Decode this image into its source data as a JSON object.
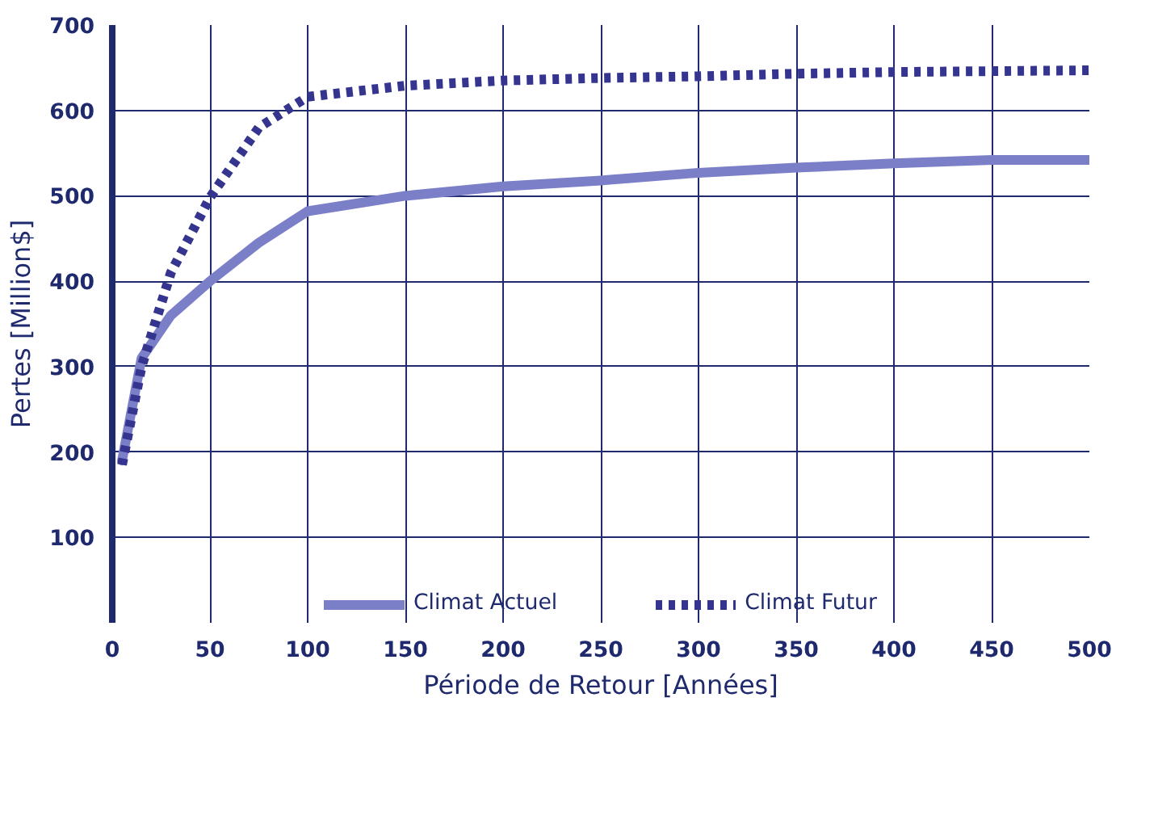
{
  "chart_data": {
    "type": "line",
    "xlabel": "Période de Retour [Années]",
    "ylabel": "Pertes [Million$]",
    "x": [
      5,
      15,
      30,
      50,
      75,
      100,
      150,
      200,
      250,
      300,
      350,
      400,
      450,
      500
    ],
    "series": [
      {
        "name": "Climat Actuel",
        "color": "#7b7fc8",
        "line_style": "solid",
        "values": [
          190,
          310,
          360,
          400,
          445,
          482,
          500,
          511,
          518,
          527,
          533,
          538,
          542,
          542
        ]
      },
      {
        "name": "Climat Futur",
        "color": "#35358f",
        "line_style": "dotted",
        "values": [
          185,
          300,
          410,
          498,
          580,
          616,
          629,
          635,
          638,
          640,
          643,
          645,
          646,
          647
        ]
      }
    ],
    "xlim": [
      0,
      500
    ],
    "ylim": [
      0,
      700
    ],
    "xticks": [
      0,
      50,
      100,
      150,
      200,
      250,
      300,
      350,
      400,
      450,
      500
    ],
    "yticks": [
      100,
      200,
      300,
      400,
      500,
      600,
      700
    ],
    "grid": true,
    "legend": "bottom",
    "marker": "none"
  }
}
